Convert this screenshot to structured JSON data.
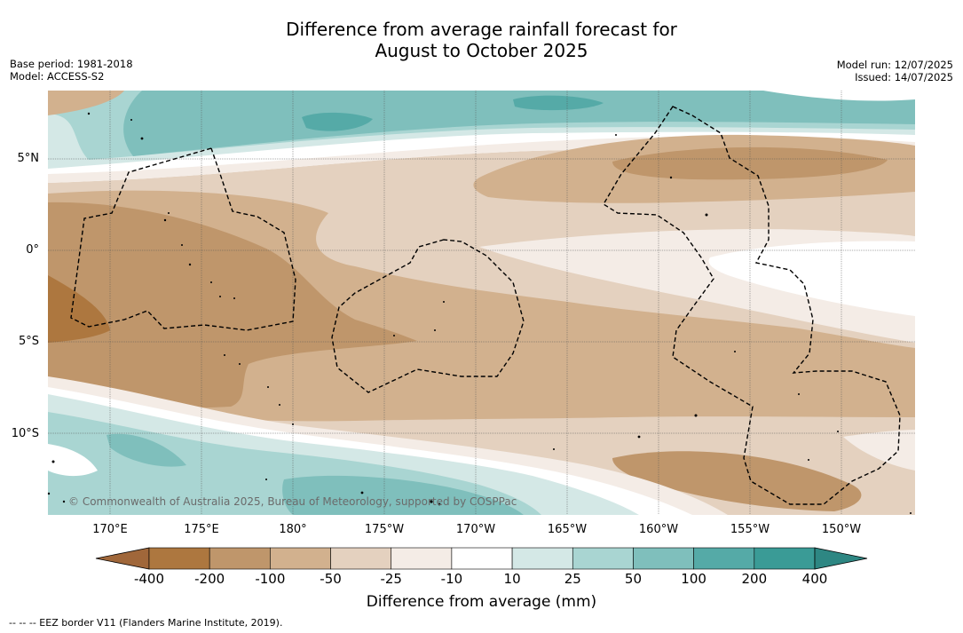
{
  "title_line1": "Difference from average rainfall forecast for",
  "title_line2": "August to October 2025",
  "meta_left": [
    "Base period: 1981-2018",
    "Model: ACCESS-S2"
  ],
  "meta_right": [
    "Model run: 12/07/2025",
    "Issued: 14/07/2025"
  ],
  "lat_labels": [
    "5°N",
    "0°",
    "5°S",
    "10°S"
  ],
  "lon_labels": [
    "170°E",
    "175°E",
    "180°",
    "175°W",
    "170°W",
    "165°W",
    "160°W",
    "155°W",
    "150°W"
  ],
  "copyright": "© Commonwealth of Australia 2025, Bureau of Meteorology, supported by COSPPac",
  "colorbar": {
    "ticks": [
      "-400",
      "-200",
      "-100",
      "-50",
      "-25",
      "-10",
      "10",
      "25",
      "50",
      "100",
      "200",
      "400"
    ],
    "colors": [
      "#a0673a",
      "#ad773f",
      "#bf966b",
      "#d2b18e",
      "#e4d1bf",
      "#f4ece6",
      "#ffffff",
      "#d4e8e6",
      "#a9d5d2",
      "#7fbfbc",
      "#55aaa7",
      "#3a9b96",
      "#2e8783"
    ],
    "title": "Difference from average (mm)"
  },
  "footnote": "--  --  -- EEZ border V11 (Flanders Marine Institute, 2019).",
  "map": {
    "dry_colors": {
      "c25": "#f4ece6",
      "c50": "#e4d1bf",
      "c100": "#d2b18e",
      "c200": "#bf966b",
      "c400": "#ad773f"
    },
    "wet_colors": {
      "c10": "#d4e8e6",
      "c25": "#a9d5d2",
      "c50": "#7fbfbc",
      "c100": "#55aaa7"
    }
  }
}
